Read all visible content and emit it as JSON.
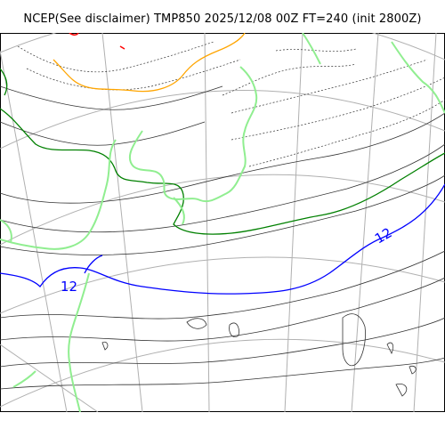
{
  "title": "NCEP(See disclaimer) TMP850 2025/12/08 00Z FT=240 (init 2800Z)",
  "contour_labels": {
    "label_a": "12",
    "label_b": "12"
  },
  "colors": {
    "isotherm_highlight": "#0000ff",
    "isotherm_zero": "#008000",
    "isotherm_minus": "#ffa500",
    "coastline": "#90ee90",
    "graticule": "#b0b0b0",
    "contour": "#333333"
  }
}
